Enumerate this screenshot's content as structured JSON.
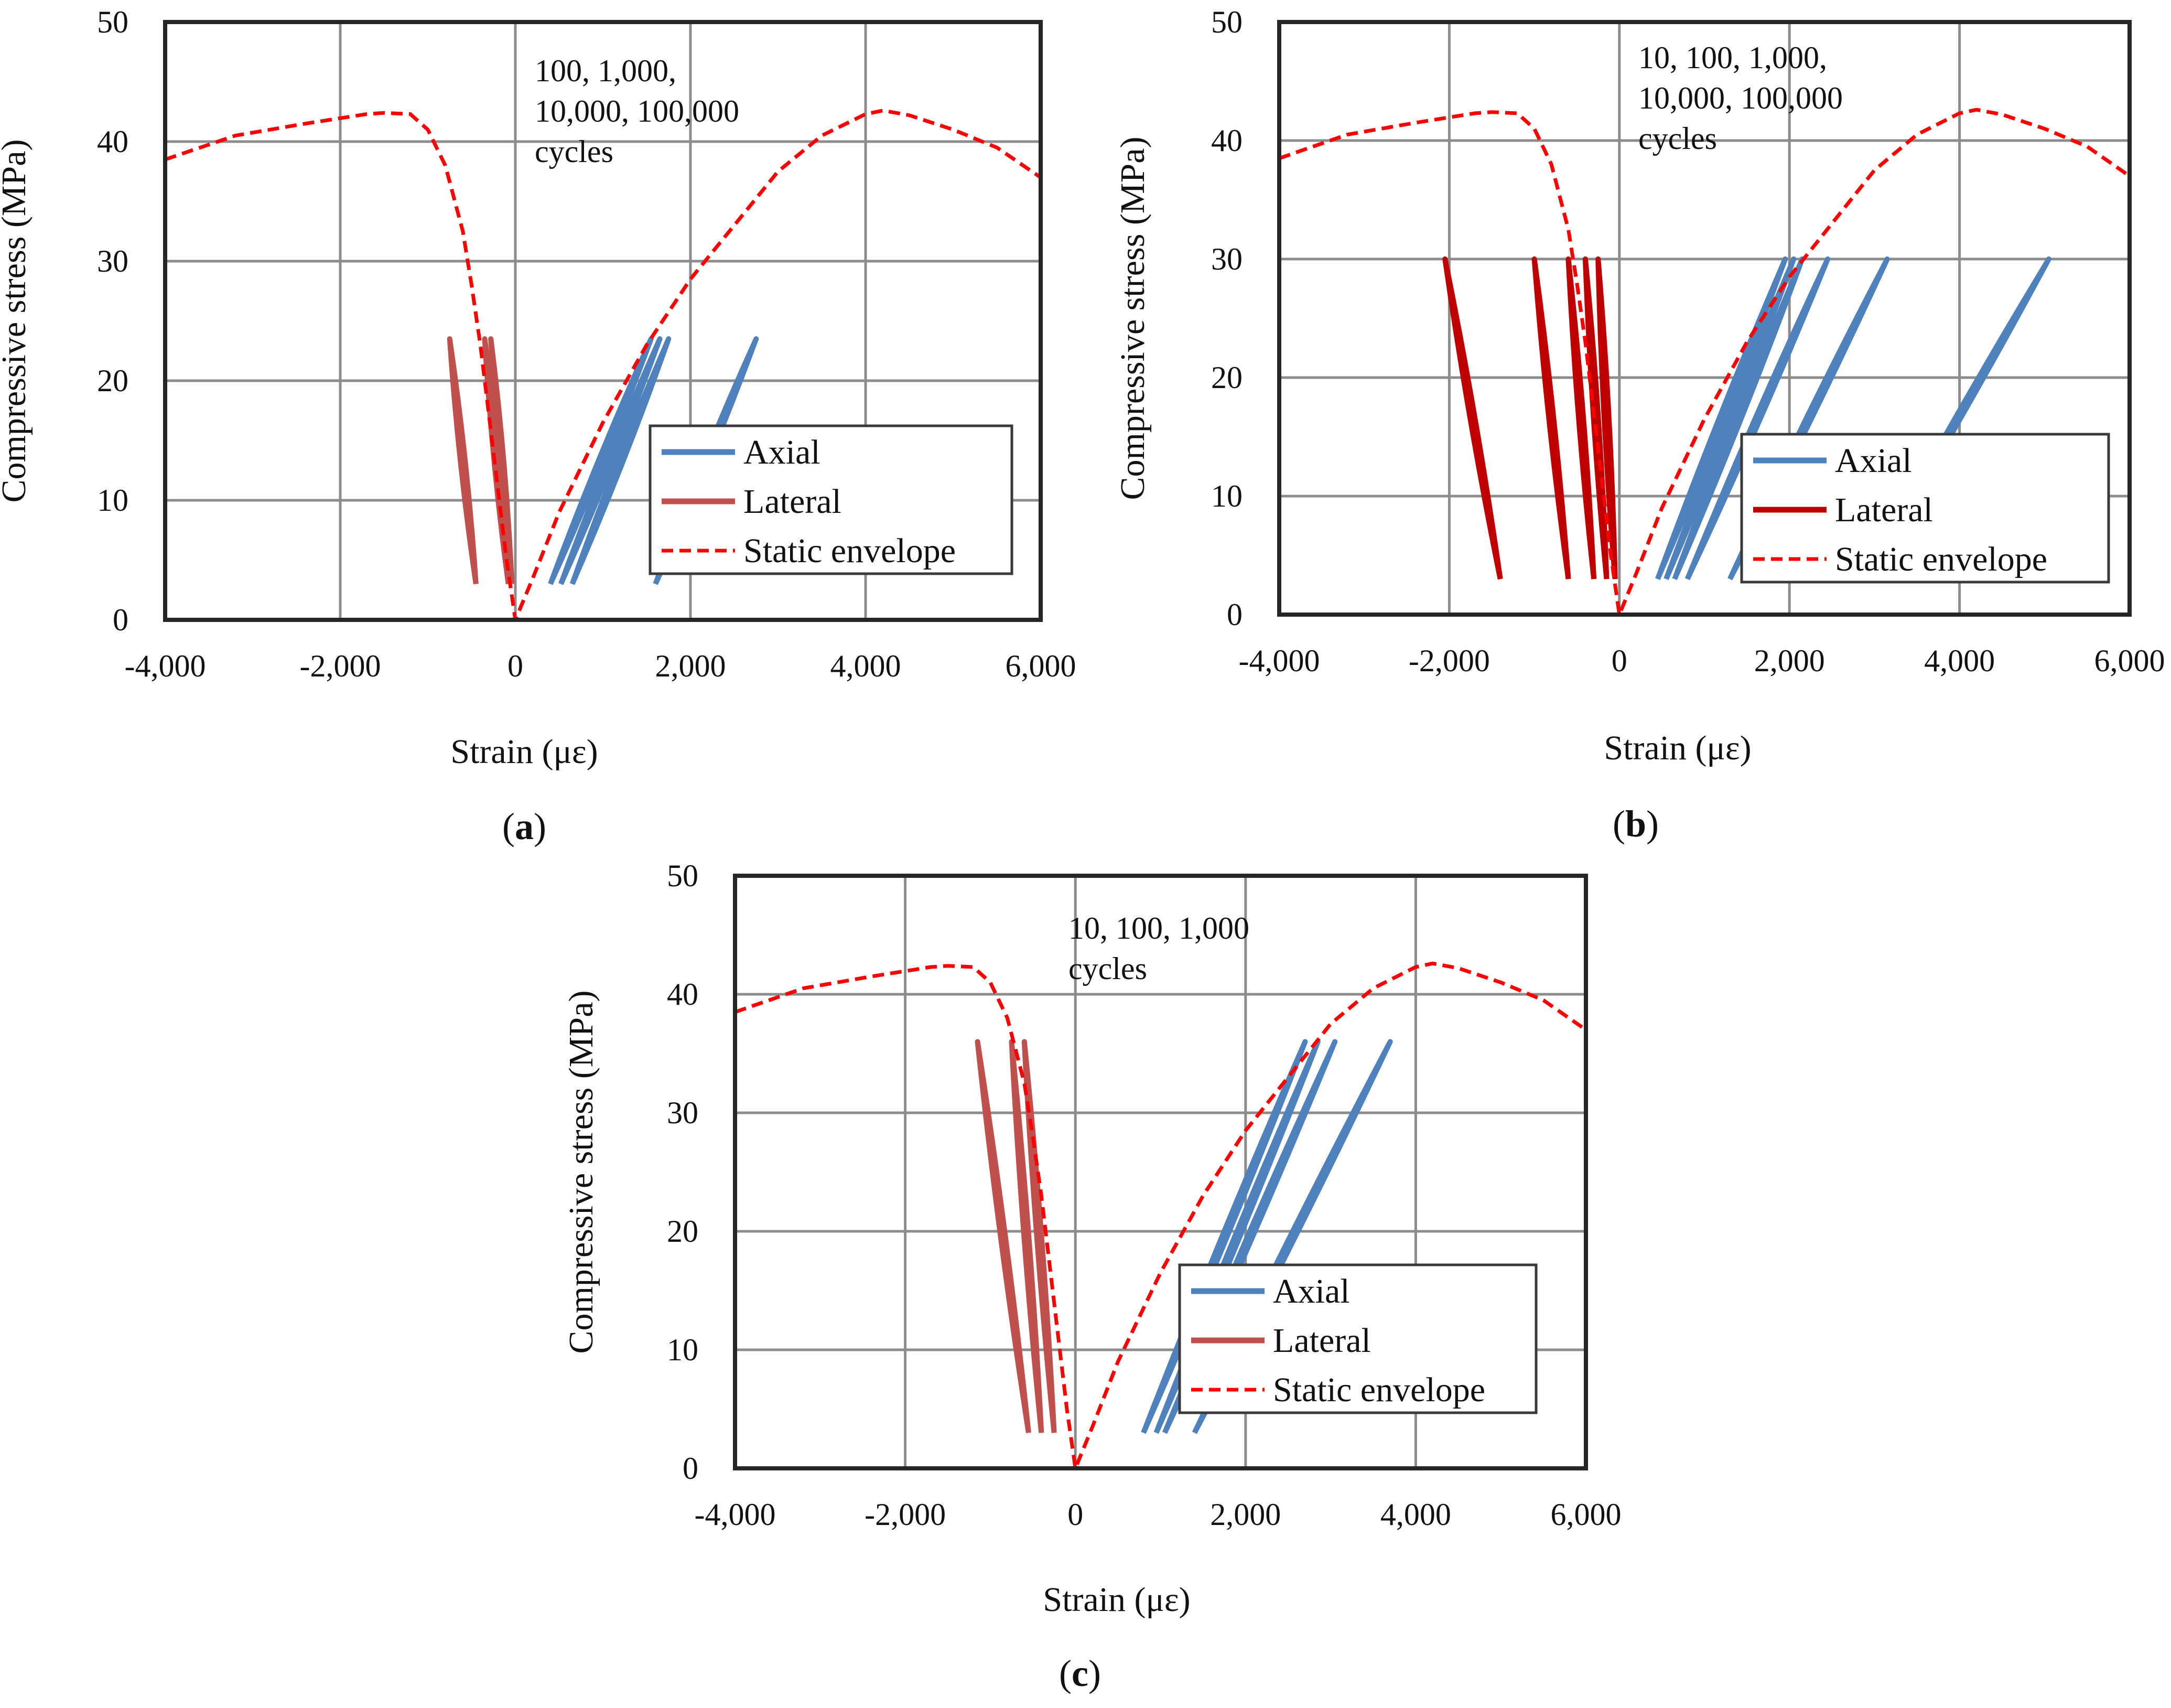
{
  "chart_data": [
    {
      "panel": "(a)",
      "panel_letter": "a",
      "type": "line",
      "xlabel": "Strain (με)",
      "ylabel": "Compressive stress (MPa)",
      "xlim": [
        -4000,
        6000
      ],
      "ylim": [
        0,
        50
      ],
      "xticks": [
        "-4,000",
        "-2,000",
        "0",
        "2,000",
        "4,000",
        "6,000"
      ],
      "yticks": [
        "0",
        "10",
        "20",
        "30",
        "40",
        "50"
      ],
      "grid": true,
      "legend_position": "bottom-right",
      "annotation": [
        "100,  1,000,",
        "10,000,  100,000",
        "cycles"
      ],
      "lateral_color": "#c0504d",
      "series": [
        {
          "name": "Axial",
          "style": "solid",
          "color": "#4f81bd",
          "cycles": [
            {
              "base": [
                400,
                3
              ],
              "peak": [
                1550,
                23.5
              ]
            },
            {
              "base": [
                520,
                3
              ],
              "peak": [
                1650,
                23.5
              ]
            },
            {
              "base": [
                650,
                3
              ],
              "peak": [
                1750,
                23.5
              ]
            },
            {
              "base": [
                1600,
                3
              ],
              "peak": [
                2750,
                23.5
              ]
            }
          ]
        },
        {
          "name": "Lateral",
          "style": "solid",
          "color": "#c0504d",
          "cycles": [
            {
              "base": [
                -450,
                3
              ],
              "peak": [
                -750,
                23.5
              ]
            },
            {
              "base": [
                -80,
                3
              ],
              "peak": [
                -350,
                23.5
              ]
            },
            {
              "base": [
                -40,
                3
              ],
              "peak": [
                -280,
                23.5
              ]
            }
          ]
        },
        {
          "name": "Static envelope",
          "style": "dashed",
          "color": "#ff0000",
          "x": [
            -4000,
            -3200,
            -2400,
            -1700,
            -1500,
            -1200,
            -1000,
            -800,
            -600,
            -500,
            -400,
            -300,
            -200,
            -100,
            0,
            200,
            500,
            1000,
            1500,
            2000,
            2500,
            3000,
            3500,
            4000,
            4200,
            4500,
            5000,
            5500,
            6000
          ],
          "y": [
            38.5,
            40.5,
            41.5,
            42.3,
            42.4,
            42.3,
            41.0,
            38.0,
            32.5,
            28.0,
            23.0,
            17.0,
            11.0,
            5.0,
            0,
            3.5,
            9.0,
            16.5,
            23.0,
            28.5,
            33.0,
            37.5,
            40.5,
            42.3,
            42.6,
            42.2,
            41.0,
            39.5,
            37.0
          ]
        }
      ]
    },
    {
      "panel": "(b)",
      "panel_letter": "b",
      "type": "line",
      "xlabel": "Strain (με)",
      "ylabel": "Compressive stress (MPa)",
      "xlim": [
        -4000,
        6000
      ],
      "ylim": [
        0,
        50
      ],
      "xticks": [
        "-4,000",
        "-2,000",
        "0",
        "2,000",
        "4,000",
        "6,000"
      ],
      "yticks": [
        "0",
        "10",
        "20",
        "30",
        "40",
        "50"
      ],
      "grid": true,
      "legend_position": "bottom-right",
      "annotation": [
        "10,  100,  1,000,",
        "10,000,  100,000",
        "cycles"
      ],
      "lateral_color": "#c00000",
      "series": [
        {
          "name": "Axial",
          "style": "solid",
          "color": "#4f81bd",
          "cycles": [
            {
              "base": [
                450,
                3
              ],
              "peak": [
                1950,
                30
              ]
            },
            {
              "base": [
                550,
                3
              ],
              "peak": [
                2050,
                30
              ]
            },
            {
              "base": [
                650,
                3
              ],
              "peak": [
                2150,
                30
              ]
            },
            {
              "base": [
                800,
                3
              ],
              "peak": [
                2450,
                30
              ]
            },
            {
              "base": [
                1300,
                3
              ],
              "peak": [
                3150,
                30
              ]
            },
            {
              "base": [
                2900,
                3
              ],
              "peak": [
                5050,
                30
              ]
            }
          ]
        },
        {
          "name": "Lateral",
          "style": "solid",
          "color": "#c00000",
          "cycles": [
            {
              "base": [
                -1400,
                3
              ],
              "peak": [
                -2050,
                30
              ]
            },
            {
              "base": [
                -600,
                3
              ],
              "peak": [
                -1000,
                30
              ]
            },
            {
              "base": [
                -300,
                3
              ],
              "peak": [
                -600,
                30
              ]
            },
            {
              "base": [
                -150,
                3
              ],
              "peak": [
                -400,
                30
              ]
            },
            {
              "base": [
                -50,
                3
              ],
              "peak": [
                -250,
                30
              ]
            }
          ]
        },
        {
          "name": "Static envelope",
          "style": "dashed",
          "color": "#ff0000",
          "x": [
            -4000,
            -3200,
            -2400,
            -1700,
            -1500,
            -1200,
            -1000,
            -800,
            -600,
            -500,
            -400,
            -300,
            -200,
            -100,
            0,
            200,
            500,
            1000,
            1500,
            2000,
            2500,
            3000,
            3500,
            4000,
            4200,
            4500,
            5000,
            5500,
            6000
          ],
          "y": [
            38.5,
            40.5,
            41.5,
            42.3,
            42.4,
            42.3,
            41.0,
            38.0,
            32.5,
            28.0,
            23.0,
            17.0,
            11.0,
            5.0,
            0,
            3.5,
            9.0,
            16.5,
            23.0,
            28.5,
            33.0,
            37.5,
            40.5,
            42.3,
            42.6,
            42.2,
            41.0,
            39.5,
            37.0
          ]
        }
      ]
    },
    {
      "panel": "(c)",
      "panel_letter": "c",
      "type": "line",
      "xlabel": "Strain (με)",
      "ylabel": "Compressive stress (MPa)",
      "xlim": [
        -4000,
        6000
      ],
      "ylim": [
        0,
        50
      ],
      "xticks": [
        "-4,000",
        "-2,000",
        "0",
        "2,000",
        "4,000",
        "6,000"
      ],
      "yticks": [
        "0",
        "10",
        "20",
        "30",
        "40",
        "50"
      ],
      "grid": true,
      "legend_position": "bottom-right",
      "annotation": [
        "10,  100,  1,000",
        "cycles"
      ],
      "lateral_color": "#c0504d",
      "series": [
        {
          "name": "Axial",
          "style": "solid",
          "color": "#4f81bd",
          "cycles": [
            {
              "base": [
                800,
                3
              ],
              "peak": [
                2700,
                36
              ]
            },
            {
              "base": [
                950,
                3
              ],
              "peak": [
                2850,
                36
              ]
            },
            {
              "base": [
                1050,
                3
              ],
              "peak": [
                3050,
                36
              ]
            },
            {
              "base": [
                1400,
                3
              ],
              "peak": [
                3700,
                36
              ]
            }
          ]
        },
        {
          "name": "Lateral",
          "style": "solid",
          "color": "#c0504d",
          "cycles": [
            {
              "base": [
                -550,
                3
              ],
              "peak": [
                -1150,
                36
              ]
            },
            {
              "base": [
                -400,
                3
              ],
              "peak": [
                -750,
                36
              ]
            },
            {
              "base": [
                -250,
                3
              ],
              "peak": [
                -600,
                36
              ]
            }
          ]
        },
        {
          "name": "Static envelope",
          "style": "dashed",
          "color": "#ff0000",
          "x": [
            -4000,
            -3200,
            -2400,
            -1700,
            -1500,
            -1200,
            -1000,
            -800,
            -600,
            -500,
            -400,
            -300,
            -200,
            -100,
            0,
            200,
            500,
            1000,
            1500,
            2000,
            2500,
            3000,
            3500,
            4000,
            4200,
            4500,
            5000,
            5500,
            6000
          ],
          "y": [
            38.5,
            40.5,
            41.5,
            42.3,
            42.4,
            42.3,
            41.0,
            38.0,
            32.5,
            28.0,
            23.0,
            17.0,
            11.0,
            5.0,
            0,
            3.5,
            9.0,
            16.5,
            23.0,
            28.5,
            33.0,
            37.5,
            40.5,
            42.3,
            42.6,
            42.2,
            41.0,
            39.5,
            37.0
          ]
        }
      ]
    }
  ]
}
